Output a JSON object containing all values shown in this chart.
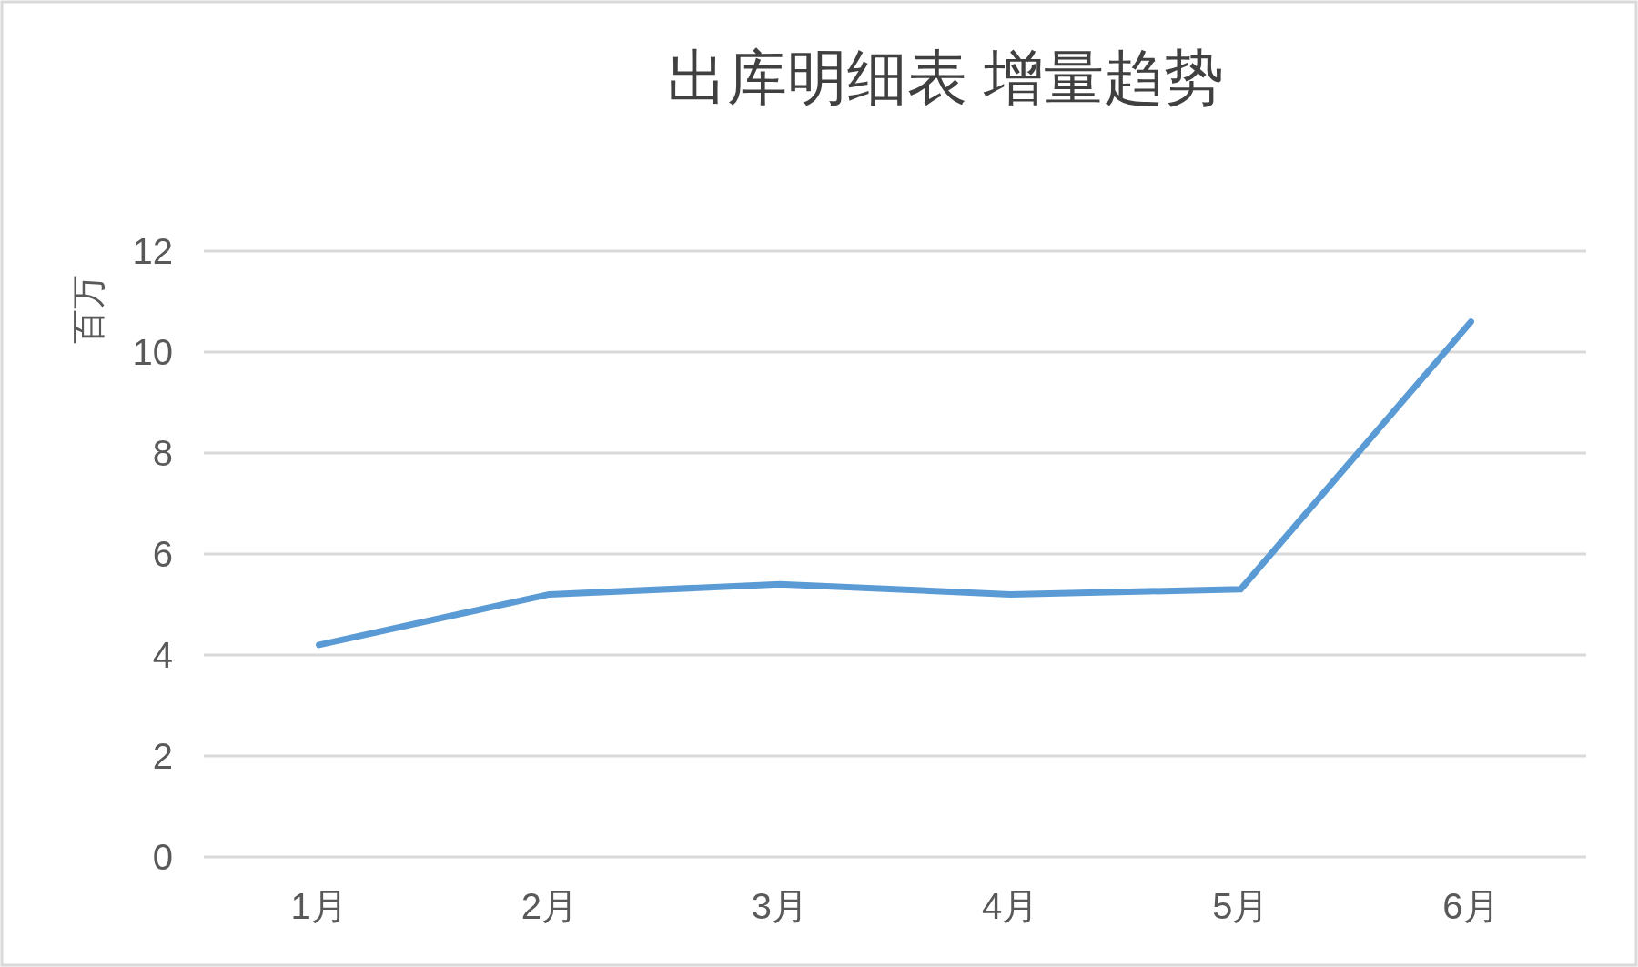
{
  "chart_data": {
    "type": "line",
    "title": "出库明细表  增量趋势",
    "ylabel": "百万",
    "categories": [
      "1月",
      "2月",
      "3月",
      "4月",
      "5月",
      "6月"
    ],
    "series": [
      {
        "color": "#5b9bd5",
        "values": [
          4.2,
          5.2,
          5.4,
          5.2,
          5.3,
          10.6
        ]
      }
    ],
    "ylim": [
      0,
      12
    ],
    "yticks": [
      0,
      2,
      4,
      6,
      8,
      10,
      12
    ],
    "grid": "y",
    "marker": "none",
    "line_style": "solid"
  }
}
